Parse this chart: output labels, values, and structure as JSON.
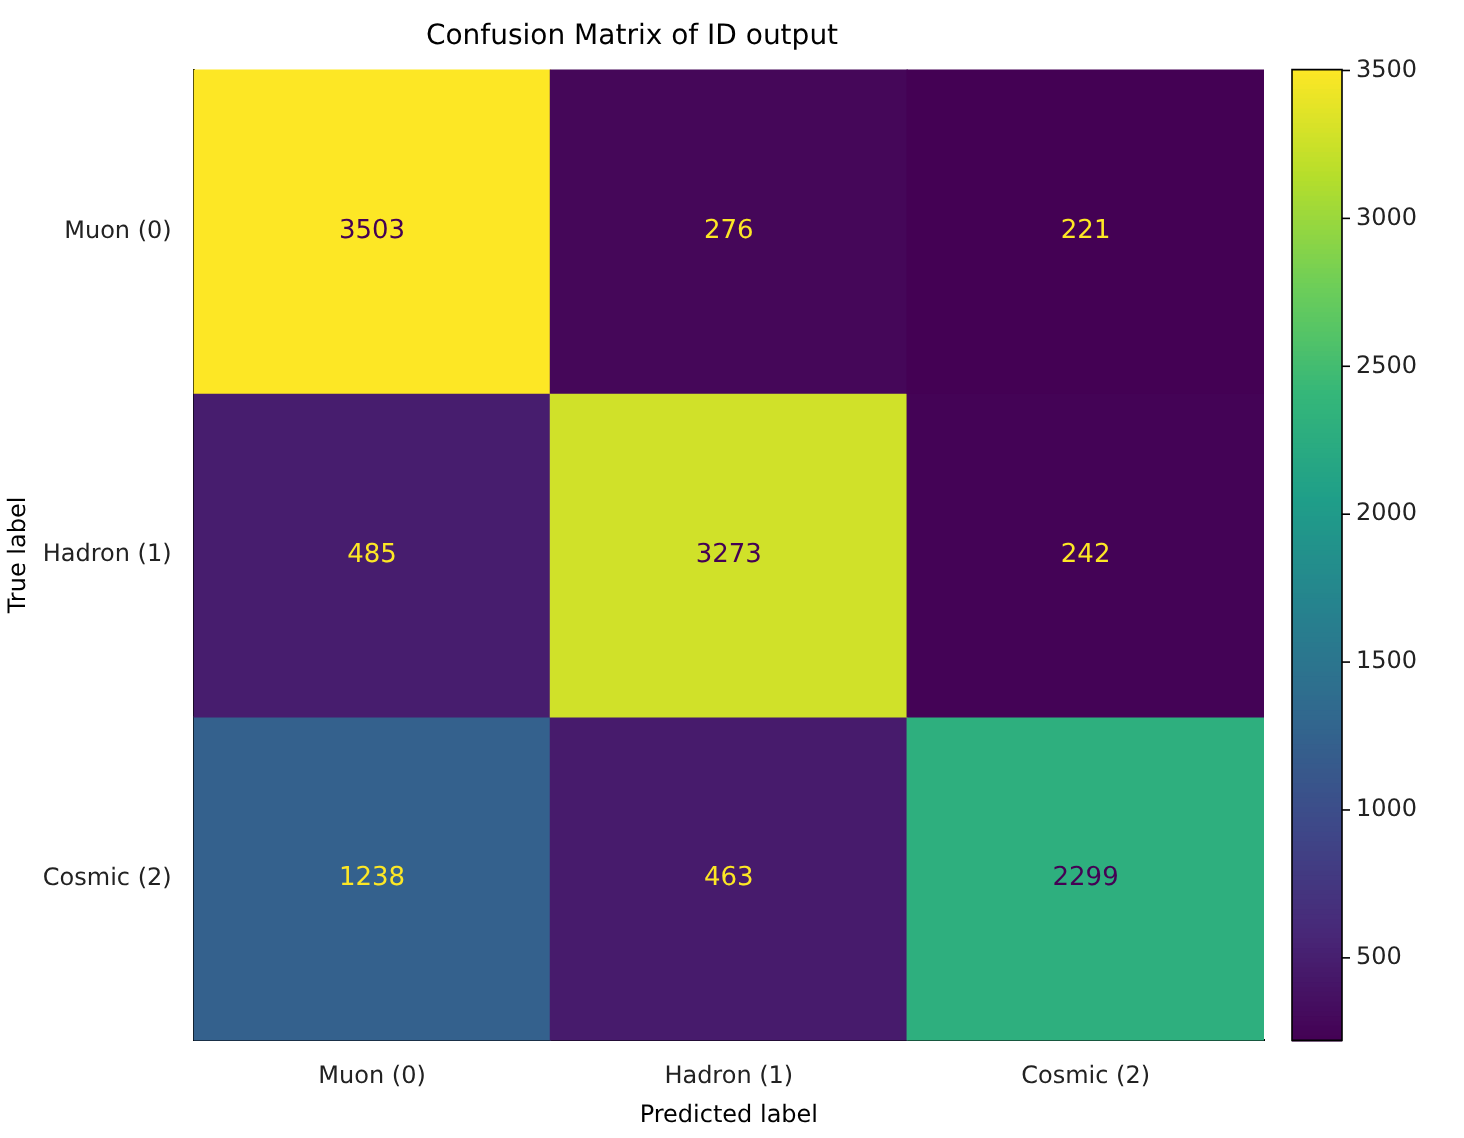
{
  "chart_data": {
    "type": "heatmap",
    "title": "Confusion Matrix of ID output",
    "xlabel": "Predicted label",
    "ylabel": "True label",
    "categories": [
      "Muon (0)",
      "Hadron (1)",
      "Cosmic (2)"
    ],
    "y_categories": [
      "Muon (0)",
      "Hadron (1)",
      "Cosmic (2)"
    ],
    "cells": [
      [
        3503,
        276,
        221
      ],
      [
        485,
        3273,
        242
      ],
      [
        1238,
        463,
        2299
      ]
    ],
    "clim": [
      221,
      3503
    ],
    "cticks": [
      500,
      1000,
      1500,
      2000,
      2500,
      3000,
      3500
    ],
    "data_labels": true
  }
}
